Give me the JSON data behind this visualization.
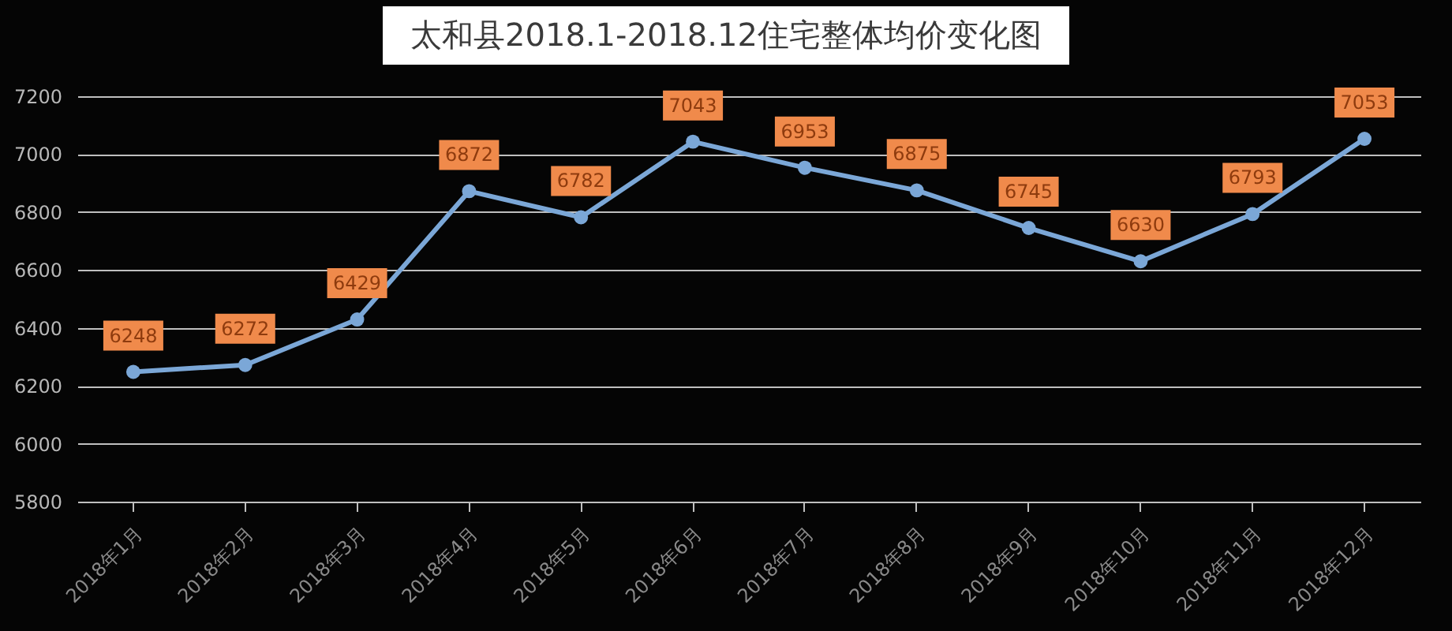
{
  "chart_data": {
    "type": "line",
    "title": "太和县2018.1-2018.12住宅整体均价变化图",
    "categories": [
      "2018年1月",
      "2018年2月",
      "2018年3月",
      "2018年4月",
      "2018年5月",
      "2018年6月",
      "2018年7月",
      "2018年8月",
      "2018年9月",
      "2018年10月",
      "2018年11月",
      "2018年12月"
    ],
    "series": [
      {
        "color": "#7ba7d7",
        "values": [
          6248,
          6272,
          6429,
          6872,
          6782,
          7043,
          6953,
          6875,
          6745,
          6630,
          6793,
          7053
        ]
      }
    ],
    "ylim": [
      5800,
      7200
    ],
    "yticks": [
      5800,
      6000,
      6200,
      6400,
      6600,
      6800,
      7000,
      7200
    ],
    "grid": "y",
    "marker": "circle",
    "line_style": "solid",
    "data_labels": true
  }
}
